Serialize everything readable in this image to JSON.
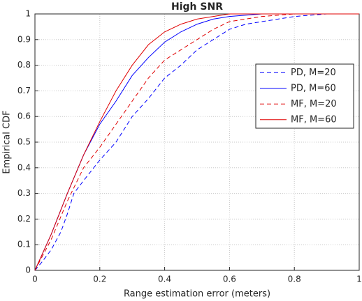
{
  "chart_data": {
    "type": "line",
    "title": "High SNR",
    "xlabel": "Range estimation error (meters)",
    "ylabel": "Empirical CDF",
    "xlim": [
      0,
      1
    ],
    "ylim": [
      0,
      1
    ],
    "xticks": [
      0,
      0.2,
      0.4,
      0.6,
      0.8,
      1
    ],
    "yticks": [
      0,
      0.1,
      0.2,
      0.3,
      0.4,
      0.5,
      0.6,
      0.7,
      0.8,
      0.9,
      1
    ],
    "grid": true,
    "legend": "right",
    "series": [
      {
        "name": "PD, M=20",
        "color": "#0000ff",
        "linestyle": "dashed",
        "x": [
          0,
          0.02,
          0.05,
          0.08,
          0.1,
          0.12,
          0.15,
          0.2,
          0.25,
          0.3,
          0.35,
          0.4,
          0.45,
          0.5,
          0.55,
          0.6,
          0.65,
          0.7,
          0.8,
          0.9,
          1
        ],
        "values": [
          0,
          0.03,
          0.08,
          0.15,
          0.22,
          0.3,
          0.35,
          0.43,
          0.5,
          0.6,
          0.67,
          0.75,
          0.8,
          0.86,
          0.9,
          0.94,
          0.96,
          0.97,
          0.99,
          1,
          1
        ]
      },
      {
        "name": "PD, M=60",
        "color": "#0000ff",
        "linestyle": "solid",
        "x": [
          0,
          0.05,
          0.1,
          0.15,
          0.2,
          0.25,
          0.3,
          0.35,
          0.4,
          0.45,
          0.5,
          0.55,
          0.6,
          0.7,
          1
        ],
        "values": [
          0,
          0.14,
          0.3,
          0.45,
          0.57,
          0.66,
          0.76,
          0.83,
          0.89,
          0.93,
          0.96,
          0.98,
          0.99,
          1,
          1
        ]
      },
      {
        "name": "MF, M=20",
        "color": "#e00000",
        "linestyle": "dashed",
        "x": [
          0,
          0.05,
          0.1,
          0.15,
          0.2,
          0.25,
          0.3,
          0.35,
          0.4,
          0.45,
          0.5,
          0.55,
          0.6,
          0.7,
          0.8,
          1
        ],
        "values": [
          0,
          0.12,
          0.27,
          0.4,
          0.48,
          0.57,
          0.66,
          0.75,
          0.82,
          0.86,
          0.9,
          0.94,
          0.97,
          0.99,
          1,
          1
        ]
      },
      {
        "name": "MF, M=60",
        "color": "#e00000",
        "linestyle": "solid",
        "x": [
          0,
          0.05,
          0.1,
          0.15,
          0.2,
          0.25,
          0.3,
          0.35,
          0.4,
          0.45,
          0.5,
          0.55,
          0.6,
          1
        ],
        "values": [
          0,
          0.14,
          0.3,
          0.45,
          0.58,
          0.7,
          0.8,
          0.88,
          0.93,
          0.96,
          0.98,
          0.99,
          1,
          1
        ]
      }
    ]
  }
}
